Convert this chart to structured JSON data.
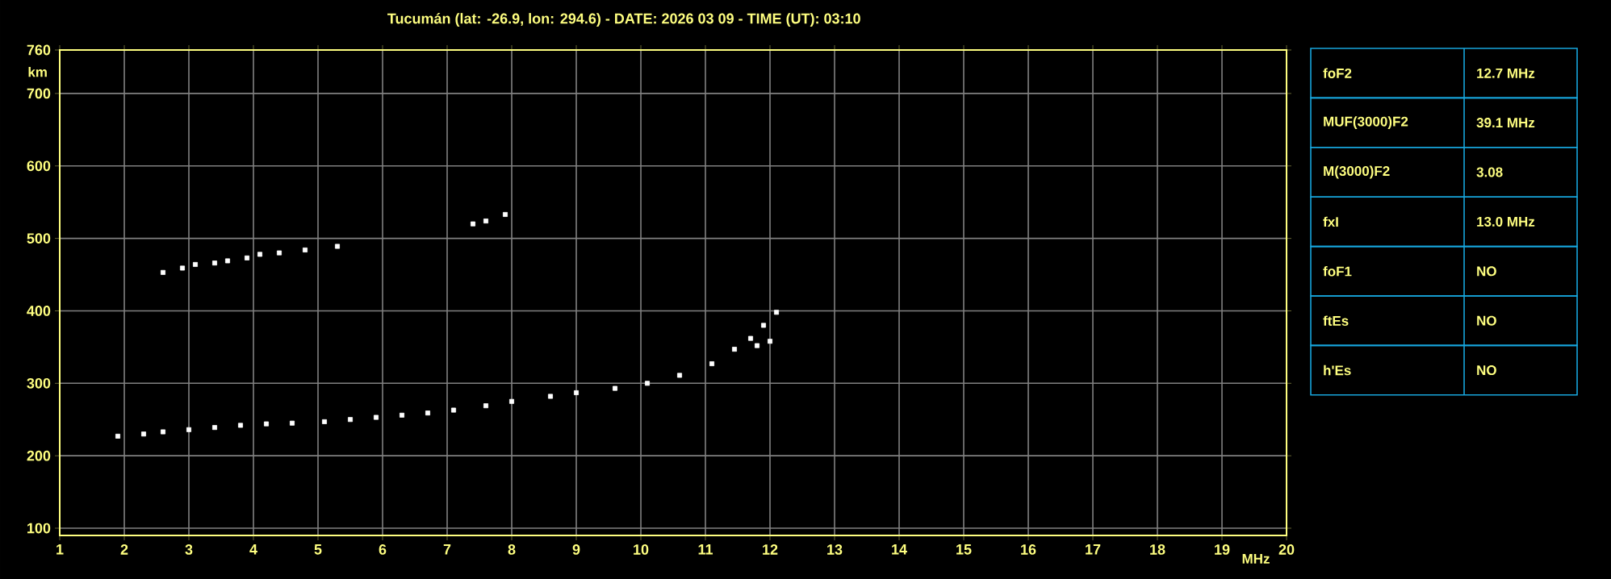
{
  "chart_data": [
    {
      "type": "scatter",
      "title": "Tucumán (lat: -26.9, lon: 294.6) - DATE: 2026 03 09 - TIME (UT): 03:10",
      "xlabel": "MHz",
      "ylabel": "km",
      "xlim": [
        1,
        20
      ],
      "ylim": [
        90,
        760
      ],
      "xticks": [
        1,
        2,
        3,
        4,
        5,
        6,
        7,
        8,
        9,
        10,
        11,
        12,
        13,
        14,
        15,
        16,
        17,
        18,
        19,
        20
      ],
      "yticks": [
        100,
        200,
        300,
        400,
        500,
        600,
        700,
        760
      ],
      "grid": true,
      "marker": "square",
      "series": [
        {
          "color": "#ffffff",
          "x": [
            1.9,
            2.3,
            2.6,
            3.0,
            3.4,
            3.8,
            4.2,
            4.6,
            5.1,
            5.5,
            5.9,
            6.3,
            6.7,
            7.1,
            7.6,
            8.0,
            8.6,
            9.0,
            9.6,
            10.1,
            10.6,
            11.1,
            11.45,
            11.7,
            11.9,
            12.1,
            11.8,
            12.0
          ],
          "values": [
            227,
            230,
            233,
            236,
            239,
            242,
            244,
            245,
            247,
            250,
            253,
            256,
            259,
            263,
            269,
            275,
            282,
            287,
            293,
            300,
            311,
            327,
            347,
            362,
            380,
            398,
            352,
            358
          ]
        },
        {
          "color": "#ffffff",
          "x": [
            2.6,
            2.9,
            3.1,
            3.4,
            3.6,
            3.9,
            4.1,
            4.4,
            4.8,
            5.3,
            7.4,
            7.6,
            7.9
          ],
          "values": [
            453,
            459,
            464,
            466,
            469,
            473,
            478,
            480,
            484,
            489,
            520,
            524,
            533
          ]
        }
      ]
    },
    {
      "type": "other",
      "categories": [
        "foF2",
        "MUF(3000)F2",
        "M(3000)F2",
        "fxI",
        "foF1",
        "ftEs",
        "h'Es"
      ],
      "value_labels": [
        "12.7 MHz",
        "39.1 MHz",
        "3.08",
        "13.0 MHz",
        "NO",
        "NO",
        "NO"
      ]
    }
  ]
}
